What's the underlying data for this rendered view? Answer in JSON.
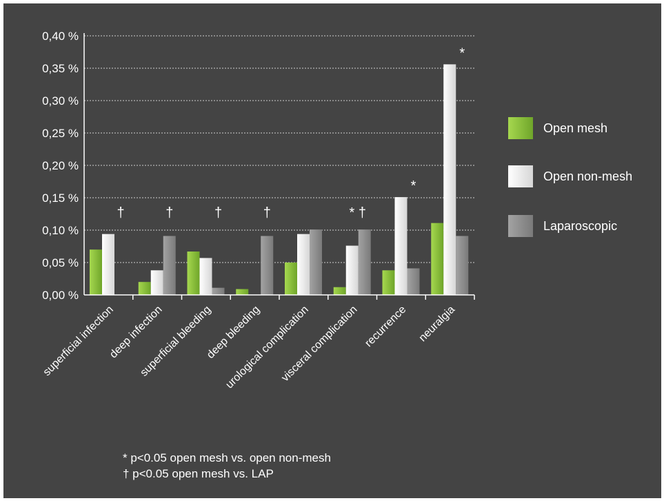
{
  "chart_data": {
    "type": "bar",
    "categories": [
      "superficial infection",
      "deep infection",
      "superficial bleeding",
      "deep bleeding",
      "urological complication",
      "visceral complication",
      "recurrence",
      "neuralgia"
    ],
    "series": [
      {
        "name": "Open mesh",
        "color": "#8dc63f",
        "values": [
          0.07,
          0.02,
          0.067,
          0.009,
          0.05,
          0.012,
          0.038,
          0.111
        ]
      },
      {
        "name": "Open non-mesh",
        "color": "#f2f2f2",
        "values": [
          0.094,
          0.038,
          0.057,
          0.0,
          0.094,
          0.076,
          0.151,
          0.356
        ]
      },
      {
        "name": "Laparoscopic",
        "color": "#8f8f8f",
        "values": [
          0.0,
          0.091,
          0.011,
          0.091,
          0.101,
          0.101,
          0.041,
          0.091
        ]
      }
    ],
    "ylim": [
      0,
      0.4
    ],
    "yticks": [
      0.0,
      0.05,
      0.1,
      0.15,
      0.2,
      0.25,
      0.3,
      0.35,
      0.4
    ],
    "ytick_labels": [
      "0,00 %",
      "0,05 %",
      "0,10 %",
      "0,15 %",
      "0,20 %",
      "0,25 %",
      "0,30 %",
      "0,35 %",
      "0,40 %"
    ],
    "grid": true,
    "legend_position": "right",
    "significance_marks": [
      {
        "category": "superficial infection",
        "text": "†"
      },
      {
        "category": "deep infection",
        "text": "†"
      },
      {
        "category": "superficial bleeding",
        "text": "†"
      },
      {
        "category": "deep bleeding",
        "text": "†"
      },
      {
        "category": "visceral complication",
        "text": "* †"
      },
      {
        "category": "recurrence",
        "text": "*"
      },
      {
        "category": "neuralgia",
        "text": "*"
      }
    ],
    "footnotes": [
      "* p<0.05 open mesh vs. open non-mesh",
      "† p<0.05 open mesh vs. LAP"
    ]
  }
}
